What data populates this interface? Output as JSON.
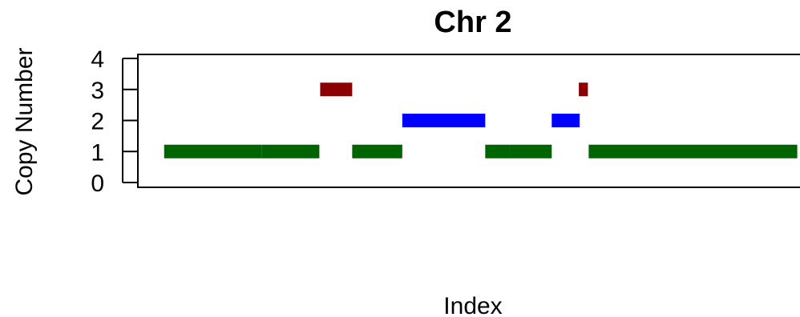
{
  "chart_data": {
    "type": "bar",
    "title": "Chr 2",
    "xlabel": "Index",
    "ylabel": "Copy Number",
    "ylim": [
      0,
      4
    ],
    "yticks": [
      "0",
      "1",
      "2",
      "3",
      "4"
    ],
    "xlim": [
      0,
      820
    ],
    "grid": false,
    "legend": "none",
    "colors": {
      "1": "#006400",
      "2": "#0000ff",
      "3": "#8b0000"
    },
    "segments": [
      {
        "start": 32,
        "end": 151,
        "copy_number": 1
      },
      {
        "start": 151,
        "end": 221,
        "copy_number": 1
      },
      {
        "start": 222,
        "end": 261,
        "copy_number": 3
      },
      {
        "start": 261,
        "end": 322,
        "copy_number": 1
      },
      {
        "start": 322,
        "end": 423,
        "copy_number": 2
      },
      {
        "start": 423,
        "end": 453,
        "copy_number": 1
      },
      {
        "start": 453,
        "end": 504,
        "copy_number": 1
      },
      {
        "start": 504,
        "end": 538,
        "copy_number": 2
      },
      {
        "start": 537,
        "end": 548,
        "copy_number": 3
      },
      {
        "start": 549,
        "end": 803,
        "copy_number": 1
      }
    ]
  }
}
